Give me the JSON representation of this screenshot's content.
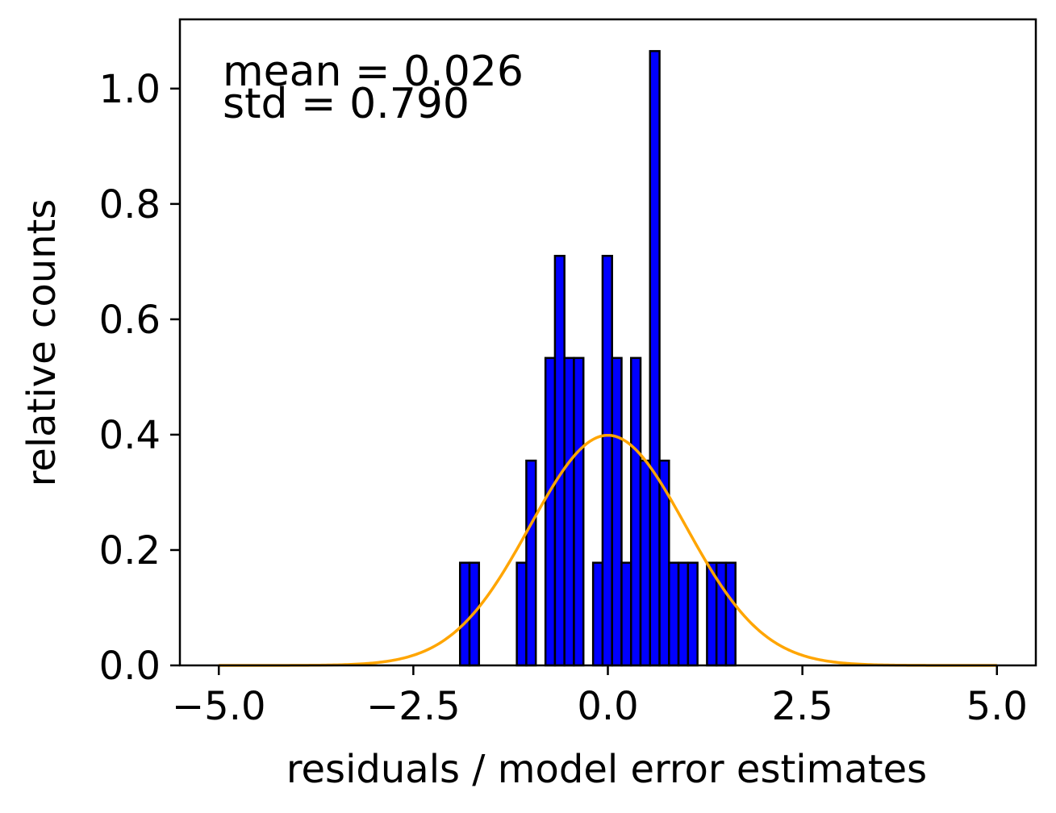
{
  "chart_data": {
    "type": "bar",
    "xlabel": "residuals / model error estimates",
    "ylabel": "relative counts",
    "xlim": [
      -5.5,
      5.5
    ],
    "ylim": [
      0,
      1.12
    ],
    "xticks": [
      -5.0,
      -2.5,
      0.0,
      2.5,
      5.0
    ],
    "xtick_labels": [
      "−5.0",
      "−2.5",
      "0.0",
      "2.5",
      "5.0"
    ],
    "yticks": [
      0.0,
      0.2,
      0.4,
      0.6,
      0.8,
      1.0
    ],
    "ytick_labels": [
      "0.0",
      "0.2",
      "0.4",
      "0.6",
      "0.8",
      "1.0"
    ],
    "annotations": [
      "mean = 0.026",
      "std = 0.790"
    ],
    "bin_width": 0.122,
    "bins": [
      {
        "x": -1.9,
        "value": 0.178
      },
      {
        "x": -1.778,
        "value": 0.178
      },
      {
        "x": -1.17,
        "value": 0.178
      },
      {
        "x": -1.048,
        "value": 0.355
      },
      {
        "x": -0.802,
        "value": 0.533
      },
      {
        "x": -0.68,
        "value": 0.71
      },
      {
        "x": -0.558,
        "value": 0.533
      },
      {
        "x": -0.436,
        "value": 0.533
      },
      {
        "x": -0.19,
        "value": 0.178
      },
      {
        "x": -0.068,
        "value": 0.71
      },
      {
        "x": 0.054,
        "value": 0.533
      },
      {
        "x": 0.176,
        "value": 0.178
      },
      {
        "x": 0.298,
        "value": 0.533
      },
      {
        "x": 0.42,
        "value": 0.355
      },
      {
        "x": 0.542,
        "value": 1.065
      },
      {
        "x": 0.664,
        "value": 0.355
      },
      {
        "x": 0.786,
        "value": 0.178
      },
      {
        "x": 0.908,
        "value": 0.178
      },
      {
        "x": 1.03,
        "value": 0.178
      },
      {
        "x": 1.274,
        "value": 0.178
      },
      {
        "x": 1.396,
        "value": 0.178
      },
      {
        "x": 1.518,
        "value": 0.178
      }
    ],
    "curve": {
      "type": "normal-pdf",
      "mean": 0.0,
      "std": 1.0,
      "x_range": [
        -5.0,
        5.0
      ],
      "color": "#ffa500"
    },
    "bar_color": "#0000ff",
    "bar_edge_color": "#000000",
    "grid": false,
    "legend": "none"
  }
}
